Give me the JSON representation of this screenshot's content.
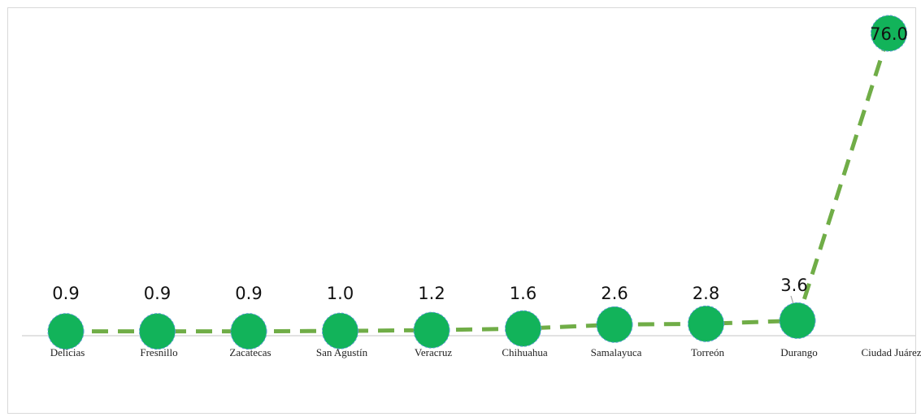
{
  "chart_data": {
    "type": "line",
    "title": "",
    "xlabel": "",
    "ylabel": "",
    "categories": [
      "Delicias",
      "Fresnillo",
      "Zacatecas",
      "San Agustín",
      "Veracruz",
      "Chihuahua",
      "Samalayuca",
      "Torreón",
      "Durango",
      "Ciudad Juárez"
    ],
    "series": [
      {
        "values": [
          0.9,
          0.9,
          0.9,
          1.0,
          1.2,
          1.6,
          2.6,
          2.8,
          3.6,
          76.0
        ],
        "data_labels": [
          "0.9",
          "0.9",
          "0.9",
          "1.0",
          "1.2",
          "1.6",
          "2.6",
          "2.8",
          "3.6",
          "76.0"
        ]
      }
    ],
    "ylim": [
      0,
      80
    ],
    "grid": false,
    "legend": "none",
    "line_color": "#70ad47",
    "line_style": "dashed",
    "marker_color": "#12b35a",
    "marker_border_color": "#5b9bd5",
    "axis_color": "#d9d9d9"
  }
}
